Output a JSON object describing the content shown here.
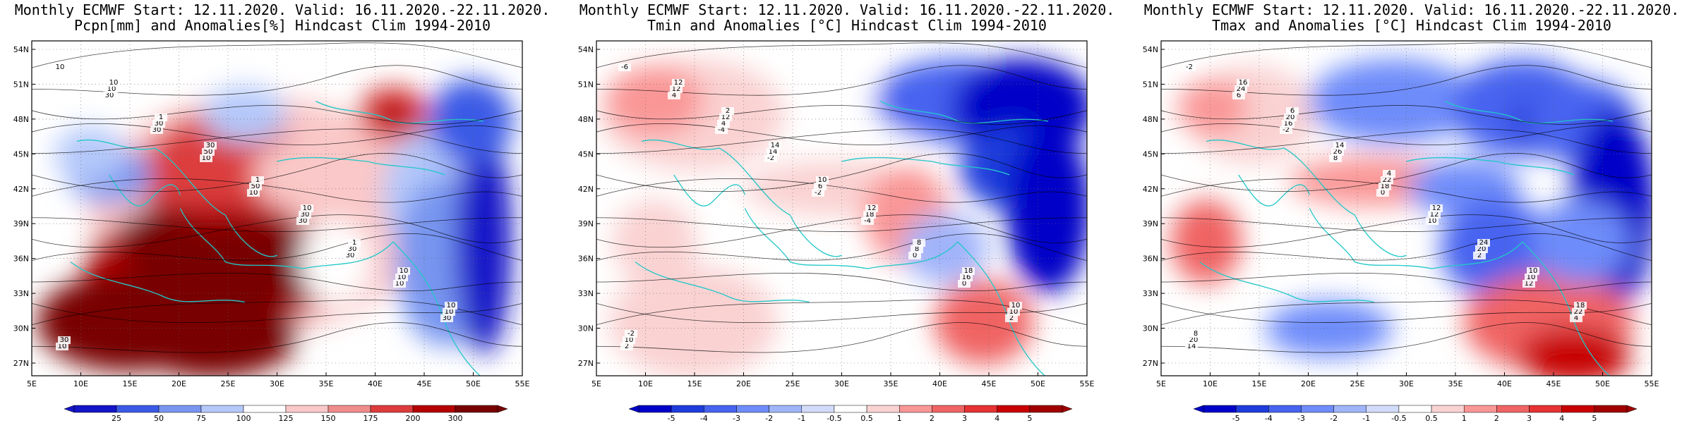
{
  "panels": [
    {
      "title1": "Monthly ECMWF Start: 12.11.2020. Valid: 16.11.2020.-22.11.2020.",
      "title2": "Pcpn[mm] and Anomalies[%] Hindcast Clim 1994-2010",
      "colorbar": {
        "ticks": [
          "25",
          "50",
          "75",
          "100",
          "125",
          "150",
          "175",
          "200",
          "300"
        ],
        "colors": [
          "#1414c8",
          "#3a5ae6",
          "#7896f0",
          "#b4c8fa",
          "#ffffff",
          "#fac8c8",
          "#f08c8c",
          "#dc3c3c",
          "#b40000",
          "#780000"
        ]
      },
      "contour_labels": [
        "10",
        "30",
        "10",
        "30",
        "30",
        "30",
        "10",
        "30",
        "10",
        "10",
        "30",
        "50",
        "30",
        "10",
        "10",
        "50",
        "30",
        "10",
        "30",
        "1",
        "1",
        "1",
        "10",
        "10",
        "30",
        "10",
        "10"
      ]
    },
    {
      "title1": "Monthly ECMWF Start: 12.11.2020. Valid: 16.11.2020.-22.11.2020.",
      "title2": "Tmin and Anomalies [°C] Hindcast Clim 1994-2010",
      "colorbar": {
        "ticks": [
          "-5",
          "-4",
          "-3",
          "-2",
          "-1",
          "-0.5",
          "0.5",
          "1",
          "2",
          "3",
          "4",
          "5"
        ],
        "colors": [
          "#0000c8",
          "#1e3cdc",
          "#4664f0",
          "#6e8cfa",
          "#a0b4fa",
          "#d2dcfa",
          "#ffffff",
          "#fad2d2",
          "#fa9696",
          "#f06464",
          "#e63232",
          "#c80000",
          "#a00000"
        ]
      },
      "contour_labels": [
        "-6",
        "-4",
        "-2",
        "0",
        "2",
        "4",
        "-2",
        "-4",
        "0",
        "2",
        "4",
        "6",
        "8",
        "10",
        "12",
        "14",
        "18",
        "16",
        "10",
        "12",
        "10",
        "8",
        "10",
        "12",
        "14",
        "12",
        "18",
        "-2",
        "2"
      ]
    },
    {
      "title1": "Monthly ECMWF Start: 12.11.2020. Valid: 16.11.2020.-22.11.2020.",
      "title2": "Tmax and Anomalies [°C] Hindcast Clim 1994-2010",
      "colorbar": {
        "ticks": [
          "-5",
          "-4",
          "-3",
          "-2",
          "-1",
          "-0.5",
          "0.5",
          "1",
          "2",
          "3",
          "4",
          "5"
        ],
        "colors": [
          "#0000c8",
          "#1e3cdc",
          "#4664f0",
          "#6e8cfa",
          "#a0b4fa",
          "#d2dcfa",
          "#ffffff",
          "#fad2d2",
          "#fa9696",
          "#f06464",
          "#e63232",
          "#c80000",
          "#a00000"
        ]
      },
      "contour_labels": [
        "-2",
        "-2",
        "0",
        "2",
        "4",
        "6",
        "8",
        "10",
        "12",
        "14",
        "16",
        "18",
        "20",
        "22",
        "24",
        "26",
        "12",
        "10",
        "20",
        "20",
        "22",
        "24",
        "18",
        "16",
        "14",
        "12",
        "10",
        "8",
        "6",
        "4"
      ]
    }
  ],
  "axes": {
    "lat_labels": [
      "54N",
      "51N",
      "48N",
      "45N",
      "42N",
      "39N",
      "36N",
      "33N",
      "30N",
      "27N"
    ],
    "lon_labels": [
      "5E",
      "10E",
      "15E",
      "20E",
      "25E",
      "30E",
      "35E",
      "40E",
      "45E",
      "50E",
      "55E"
    ]
  }
}
